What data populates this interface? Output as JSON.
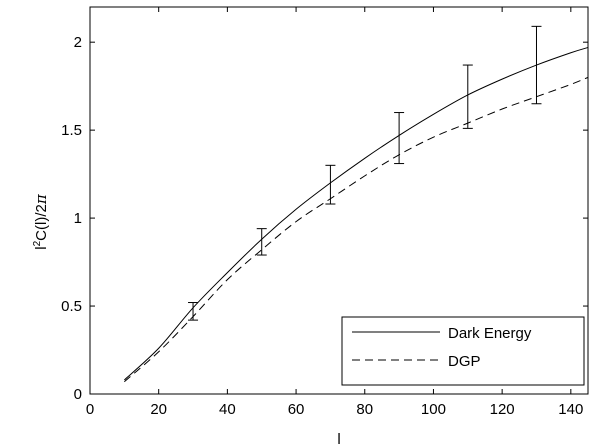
{
  "chart_data": {
    "type": "line",
    "xlabel": "l",
    "ylabel_parts": [
      "l",
      "2",
      "C(l)/2",
      "π"
    ],
    "xlim": [
      0,
      145
    ],
    "ylim": [
      0,
      2.2
    ],
    "xticks": [
      0,
      20,
      40,
      60,
      80,
      100,
      120,
      140
    ],
    "yticks": [
      0,
      0.5,
      1,
      1.5,
      2
    ],
    "xtick_labels": [
      "0",
      "20",
      "40",
      "60",
      "80",
      "100",
      "120",
      "140"
    ],
    "ytick_labels": [
      "0",
      "0.5",
      "1",
      "1.5",
      "2"
    ],
    "grid": false,
    "legend_position": "bottom-right",
    "series": [
      {
        "name": "Dark Energy",
        "style": "solid",
        "x": [
          10,
          20,
          30,
          40,
          50,
          60,
          70,
          80,
          90,
          100,
          110,
          120,
          130,
          140,
          145
        ],
        "y": [
          0.08,
          0.26,
          0.49,
          0.69,
          0.88,
          1.05,
          1.2,
          1.34,
          1.47,
          1.59,
          1.7,
          1.79,
          1.87,
          1.94,
          1.97
        ]
      },
      {
        "name": "DGP",
        "style": "dashed",
        "x": [
          10,
          20,
          30,
          40,
          50,
          60,
          70,
          80,
          90,
          100,
          110,
          120,
          130,
          140,
          145
        ],
        "y": [
          0.07,
          0.24,
          0.44,
          0.65,
          0.82,
          0.98,
          1.11,
          1.24,
          1.36,
          1.46,
          1.54,
          1.62,
          1.69,
          1.76,
          1.8
        ]
      }
    ],
    "error_bars": [
      {
        "x": 30,
        "low": 0.42,
        "high": 0.52
      },
      {
        "x": 50,
        "low": 0.79,
        "high": 0.94
      },
      {
        "x": 70,
        "low": 1.08,
        "high": 1.3
      },
      {
        "x": 90,
        "low": 1.31,
        "high": 1.6
      },
      {
        "x": 110,
        "low": 1.51,
        "high": 1.87
      },
      {
        "x": 130,
        "low": 1.65,
        "high": 2.09
      }
    ]
  }
}
